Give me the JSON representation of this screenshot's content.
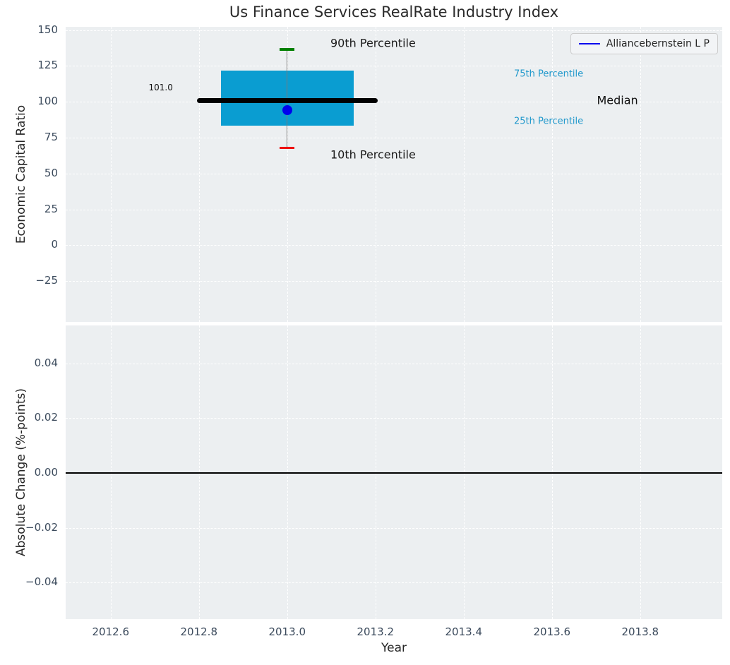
{
  "figure": {
    "title": "Us Finance Services RealRate Industry Index",
    "background": "#ffffff",
    "axes_background": "#eceff1"
  },
  "legend": {
    "label": "Alliancebernstein L P",
    "line_color": "#0000ee",
    "position": "upper right"
  },
  "chart_data": [
    {
      "type": "boxplot",
      "subplot": "top",
      "title": "Us Finance Services RealRate Industry Index",
      "ylabel": "Economic Capital Ratio",
      "xlim": [
        2012.498,
        2013.986
      ],
      "ylim": [
        -53.4,
        152.3
      ],
      "ytick_values": [
        150,
        125,
        100,
        75,
        50,
        25,
        0,
        -25
      ],
      "ytick_labels": [
        "150",
        "125",
        "100",
        "75",
        "50",
        "25",
        "0",
        "−25"
      ],
      "xtick_values": [
        2012.6,
        2012.8,
        2013.0,
        2013.2,
        2013.4,
        2013.6,
        2013.8
      ],
      "grid": true,
      "series": [
        {
          "name": "Alliancebernstein L P",
          "x": 2013.0,
          "p10": 68,
          "p25": 83.5,
          "median": 101.0,
          "p75": 122,
          "p90": 136.5,
          "company_value": 94,
          "box_x": [
            2012.85,
            2013.15
          ],
          "median_x": [
            2012.8,
            2013.2
          ],
          "box_color": "#0a9dd1",
          "median_color": "#000000",
          "whisker_color": "#7a7a7a",
          "p90_cap_color": "#008000",
          "p10_cap_color": "#ee1111",
          "marker_color": "#0000ee"
        }
      ],
      "annotations": [
        {
          "text": "90th Percentile",
          "x": 2013.098,
          "y": 140.8,
          "color": "#1a1a1a",
          "size": 16,
          "anchor": "left"
        },
        {
          "text": "10th Percentile",
          "x": 2013.098,
          "y": 63.1,
          "color": "#1a1a1a",
          "size": 16,
          "anchor": "left"
        },
        {
          "text": "75th Percentile",
          "x": 2013.514,
          "y": 119.3,
          "color": "#2299cc",
          "size": 13,
          "anchor": "left"
        },
        {
          "text": "25th Percentile",
          "x": 2013.514,
          "y": 86.5,
          "color": "#2299cc",
          "size": 13,
          "anchor": "left"
        },
        {
          "text": "Median",
          "x": 2013.702,
          "y": 101.3,
          "color": "#111111",
          "size": 16,
          "anchor": "left"
        },
        {
          "text": "101.0",
          "x": 2012.741,
          "y": 110.1,
          "color": "#111111",
          "size": 12,
          "anchor": "right"
        }
      ]
    },
    {
      "type": "line",
      "subplot": "bottom",
      "xlabel": "Year",
      "ylabel": "Absolute Change (%-points)",
      "xlim": [
        2012.498,
        2013.986
      ],
      "ylim": [
        -0.0533,
        0.0538
      ],
      "ytick_values": [
        0.04,
        0.02,
        0,
        -0.02,
        -0.04
      ],
      "ytick_labels": [
        "0.04",
        "0.02",
        "0.00",
        "−0.02",
        "−0.04"
      ],
      "xtick_values": [
        2012.6,
        2012.8,
        2013.0,
        2013.2,
        2013.4,
        2013.6,
        2013.8
      ],
      "xtick_labels": [
        "2012.6",
        "2012.8",
        "2013.0",
        "2013.2",
        "2013.4",
        "2013.6",
        "2013.8"
      ],
      "grid": true,
      "zero_line": {
        "y": 0.0,
        "color": "#000000"
      }
    }
  ]
}
